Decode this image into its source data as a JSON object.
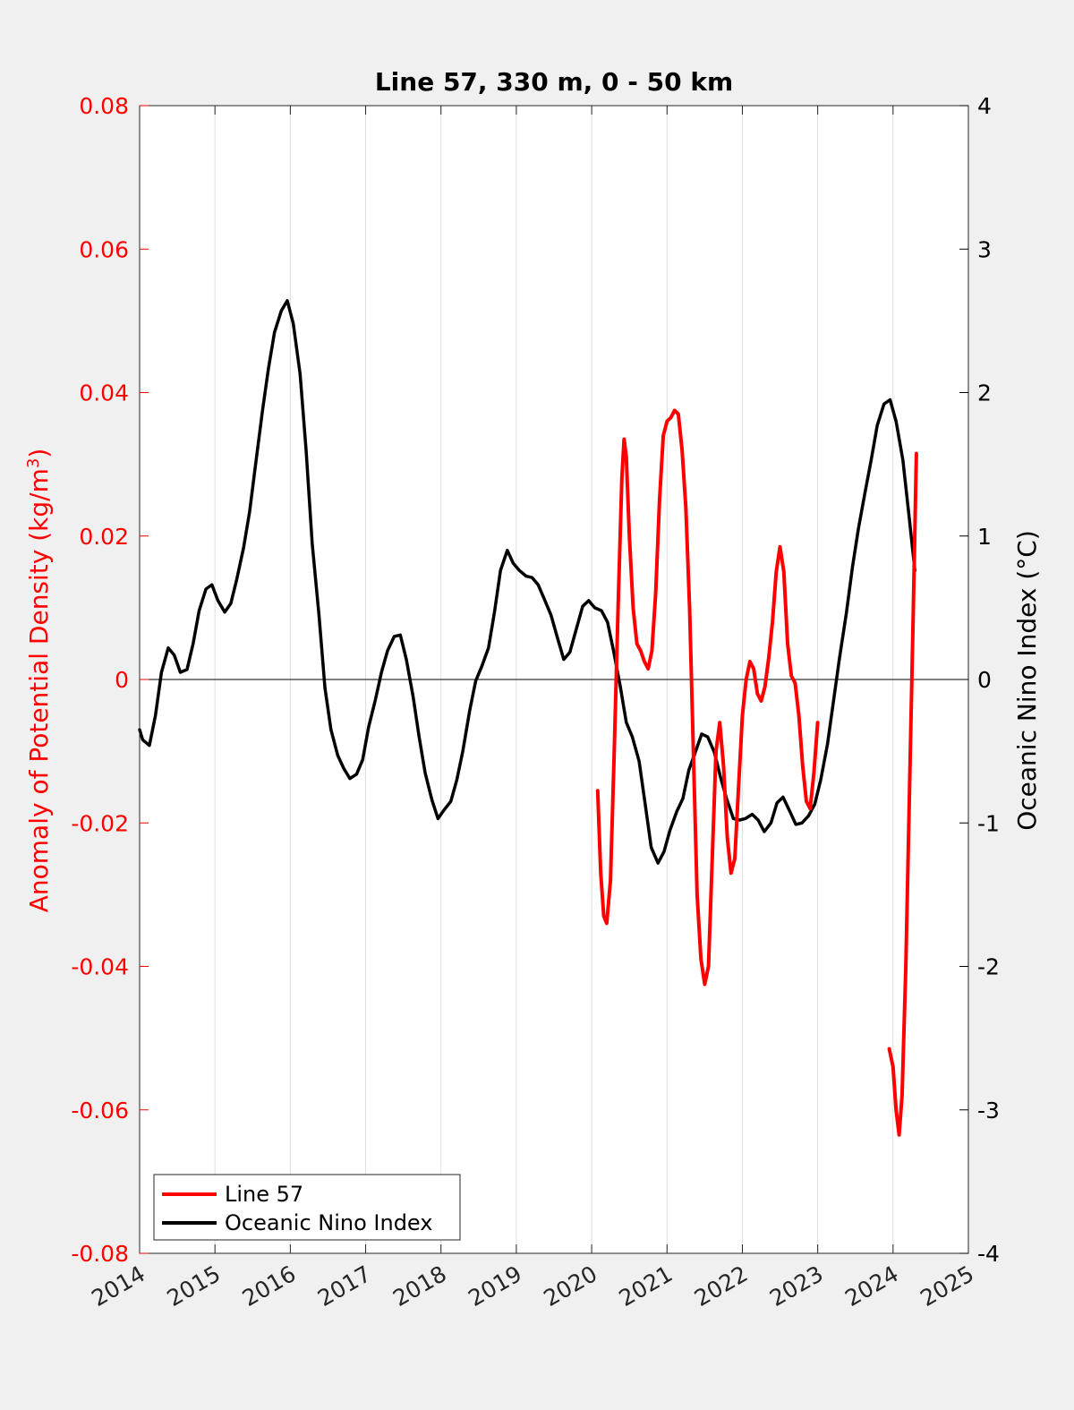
{
  "chart_data": {
    "type": "line",
    "title": "Line 57, 330 m, 0 - 50 km",
    "xlabel": "",
    "ylabel_left": "Anomaly of Potential Density (kg/m3)",
    "ylabel_left_parts": {
      "text": "Anomaly of Potential Density (kg/m",
      "sup": "3",
      "close": ")"
    },
    "ylabel_right": "Oceanic Nino Index (°C)",
    "xlim": [
      2014,
      2025
    ],
    "xticks": [
      "2014",
      "2015",
      "2016",
      "2017",
      "2018",
      "2019",
      "2020",
      "2021",
      "2022",
      "2023",
      "2024",
      "2025"
    ],
    "ylim_left": [
      -0.08,
      0.08
    ],
    "yticks_left": [
      "-0.08",
      "-0.06",
      "-0.04",
      "-0.02",
      "0",
      "0.02",
      "0.04",
      "0.06",
      "0.08"
    ],
    "ylim_right": [
      -4,
      4
    ],
    "yticks_right": [
      "-4",
      "-3",
      "-2",
      "-1",
      "0",
      "1",
      "2",
      "3",
      "4"
    ],
    "grid": "vertical",
    "zero_line": true,
    "legend": {
      "placement": "bottom-left",
      "entries": [
        "Line 57",
        "Oceanic Nino Index"
      ]
    },
    "colors": {
      "line57": "#ff0000",
      "oni": "#000000",
      "left_axis": "#ff0000",
      "right_axis": "#000000",
      "plot_bg": "#ffffff",
      "page_bg": "#f0f0f0"
    },
    "series": [
      {
        "name": "Line 57",
        "axis": "left",
        "segments": [
          [
            [
              2020.08,
              -0.0155
            ],
            [
              2020.12,
              -0.027
            ],
            [
              2020.16,
              -0.033
            ],
            [
              2020.2,
              -0.034
            ],
            [
              2020.25,
              -0.028
            ],
            [
              2020.3,
              -0.01
            ],
            [
              2020.35,
              0.01
            ],
            [
              2020.4,
              0.028
            ],
            [
              2020.43,
              0.0335
            ],
            [
              2020.46,
              0.031
            ],
            [
              2020.5,
              0.02
            ],
            [
              2020.55,
              0.01
            ],
            [
              2020.6,
              0.005
            ],
            [
              2020.65,
              0.004
            ],
            [
              2020.7,
              0.0025
            ],
            [
              2020.75,
              0.0015
            ],
            [
              2020.8,
              0.004
            ],
            [
              2020.85,
              0.012
            ],
            [
              2020.9,
              0.025
            ],
            [
              2020.95,
              0.034
            ],
            [
              2021.0,
              0.036
            ],
            [
              2021.05,
              0.0365
            ],
            [
              2021.1,
              0.0375
            ],
            [
              2021.15,
              0.037
            ],
            [
              2021.2,
              0.032
            ],
            [
              2021.25,
              0.024
            ],
            [
              2021.3,
              0.01
            ],
            [
              2021.35,
              -0.01
            ],
            [
              2021.4,
              -0.03
            ],
            [
              2021.45,
              -0.039
            ],
            [
              2021.5,
              -0.0425
            ],
            [
              2021.55,
              -0.04
            ],
            [
              2021.6,
              -0.025
            ],
            [
              2021.65,
              -0.01
            ],
            [
              2021.7,
              -0.006
            ],
            [
              2021.75,
              -0.012
            ],
            [
              2021.8,
              -0.022
            ],
            [
              2021.85,
              -0.027
            ],
            [
              2021.9,
              -0.025
            ],
            [
              2021.95,
              -0.015
            ],
            [
              2022.0,
              -0.005
            ],
            [
              2022.05,
              0.0
            ],
            [
              2022.1,
              0.0025
            ],
            [
              2022.15,
              0.0015
            ],
            [
              2022.2,
              -0.002
            ],
            [
              2022.25,
              -0.003
            ],
            [
              2022.3,
              -0.001
            ],
            [
              2022.35,
              0.003
            ],
            [
              2022.4,
              0.008
            ],
            [
              2022.45,
              0.015
            ],
            [
              2022.5,
              0.0185
            ],
            [
              2022.55,
              0.015
            ],
            [
              2022.6,
              0.005
            ],
            [
              2022.65,
              0.0005
            ],
            [
              2022.7,
              -0.0005
            ],
            [
              2022.75,
              -0.005
            ],
            [
              2022.8,
              -0.012
            ],
            [
              2022.85,
              -0.017
            ],
            [
              2022.9,
              -0.018
            ],
            [
              2022.95,
              -0.013
            ],
            [
              2023.0,
              -0.006
            ]
          ],
          [
            [
              2023.95,
              -0.0515
            ],
            [
              2024.0,
              -0.054
            ],
            [
              2024.04,
              -0.06
            ],
            [
              2024.08,
              -0.0635
            ],
            [
              2024.12,
              -0.058
            ],
            [
              2024.17,
              -0.04
            ],
            [
              2024.22,
              -0.015
            ],
            [
              2024.27,
              0.01
            ],
            [
              2024.31,
              0.0315
            ]
          ]
        ]
      },
      {
        "name": "Oceanic Nino Index",
        "axis": "right",
        "segments": [
          [
            [
              2014.0,
              -0.35
            ],
            [
              2014.04,
              -0.42
            ],
            [
              2014.13,
              -0.46
            ],
            [
              2014.21,
              -0.25
            ],
            [
              2014.29,
              0.05
            ],
            [
              2014.38,
              0.22
            ],
            [
              2014.46,
              0.17
            ],
            [
              2014.54,
              0.05
            ],
            [
              2014.63,
              0.07
            ],
            [
              2014.71,
              0.25
            ],
            [
              2014.79,
              0.48
            ],
            [
              2014.88,
              0.63
            ],
            [
              2014.96,
              0.66
            ],
            [
              2015.04,
              0.55
            ],
            [
              2015.13,
              0.47
            ],
            [
              2015.21,
              0.53
            ],
            [
              2015.29,
              0.7
            ],
            [
              2015.38,
              0.92
            ],
            [
              2015.46,
              1.17
            ],
            [
              2015.54,
              1.5
            ],
            [
              2015.63,
              1.87
            ],
            [
              2015.71,
              2.17
            ],
            [
              2015.79,
              2.42
            ],
            [
              2015.88,
              2.57
            ],
            [
              2015.96,
              2.64
            ],
            [
              2016.04,
              2.48
            ],
            [
              2016.13,
              2.13
            ],
            [
              2016.21,
              1.6
            ],
            [
              2016.29,
              0.95
            ],
            [
              2016.38,
              0.45
            ],
            [
              2016.46,
              -0.06
            ],
            [
              2016.54,
              -0.35
            ],
            [
              2016.63,
              -0.53
            ],
            [
              2016.71,
              -0.62
            ],
            [
              2016.79,
              -0.69
            ],
            [
              2016.88,
              -0.66
            ],
            [
              2016.96,
              -0.56
            ],
            [
              2017.04,
              -0.33
            ],
            [
              2017.13,
              -0.14
            ],
            [
              2017.21,
              0.05
            ],
            [
              2017.29,
              0.2
            ],
            [
              2017.38,
              0.3
            ],
            [
              2017.46,
              0.31
            ],
            [
              2017.54,
              0.14
            ],
            [
              2017.63,
              -0.12
            ],
            [
              2017.71,
              -0.4
            ],
            [
              2017.79,
              -0.65
            ],
            [
              2017.88,
              -0.84
            ],
            [
              2017.96,
              -0.97
            ],
            [
              2018.04,
              -0.91
            ],
            [
              2018.13,
              -0.85
            ],
            [
              2018.21,
              -0.7
            ],
            [
              2018.29,
              -0.5
            ],
            [
              2018.38,
              -0.22
            ],
            [
              2018.46,
              -0.01
            ],
            [
              2018.54,
              0.09
            ],
            [
              2018.63,
              0.22
            ],
            [
              2018.71,
              0.47
            ],
            [
              2018.79,
              0.76
            ],
            [
              2018.88,
              0.9
            ],
            [
              2018.96,
              0.81
            ],
            [
              2019.04,
              0.76
            ],
            [
              2019.13,
              0.72
            ],
            [
              2019.21,
              0.71
            ],
            [
              2019.29,
              0.66
            ],
            [
              2019.38,
              0.55
            ],
            [
              2019.46,
              0.45
            ],
            [
              2019.54,
              0.3
            ],
            [
              2019.63,
              0.14
            ],
            [
              2019.71,
              0.19
            ],
            [
              2019.79,
              0.34
            ],
            [
              2019.88,
              0.51
            ],
            [
              2019.96,
              0.55
            ],
            [
              2020.04,
              0.5
            ],
            [
              2020.13,
              0.48
            ],
            [
              2020.21,
              0.4
            ],
            [
              2020.29,
              0.2
            ],
            [
              2020.38,
              -0.05
            ],
            [
              2020.46,
              -0.3
            ],
            [
              2020.54,
              -0.4
            ],
            [
              2020.63,
              -0.57
            ],
            [
              2020.71,
              -0.87
            ],
            [
              2020.79,
              -1.17
            ],
            [
              2020.88,
              -1.28
            ],
            [
              2020.96,
              -1.2
            ],
            [
              2021.04,
              -1.05
            ],
            [
              2021.13,
              -0.92
            ],
            [
              2021.21,
              -0.83
            ],
            [
              2021.29,
              -0.63
            ],
            [
              2021.38,
              -0.5
            ],
            [
              2021.46,
              -0.38
            ],
            [
              2021.54,
              -0.4
            ],
            [
              2021.63,
              -0.51
            ],
            [
              2021.71,
              -0.68
            ],
            [
              2021.79,
              -0.83
            ],
            [
              2021.88,
              -0.97
            ],
            [
              2021.96,
              -0.98
            ],
            [
              2022.04,
              -0.97
            ],
            [
              2022.13,
              -0.94
            ],
            [
              2022.21,
              -0.98
            ],
            [
              2022.29,
              -1.06
            ],
            [
              2022.38,
              -1.0
            ],
            [
              2022.46,
              -0.86
            ],
            [
              2022.54,
              -0.82
            ],
            [
              2022.63,
              -0.92
            ],
            [
              2022.71,
              -1.01
            ],
            [
              2022.79,
              -1.0
            ],
            [
              2022.88,
              -0.95
            ],
            [
              2022.96,
              -0.87
            ],
            [
              2023.04,
              -0.7
            ],
            [
              2023.13,
              -0.45
            ],
            [
              2023.21,
              -0.15
            ],
            [
              2023.29,
              0.15
            ],
            [
              2023.38,
              0.46
            ],
            [
              2023.46,
              0.78
            ],
            [
              2023.54,
              1.05
            ],
            [
              2023.63,
              1.31
            ],
            [
              2023.71,
              1.53
            ],
            [
              2023.79,
              1.77
            ],
            [
              2023.88,
              1.92
            ],
            [
              2023.96,
              1.95
            ],
            [
              2024.04,
              1.8
            ],
            [
              2024.13,
              1.53
            ],
            [
              2024.21,
              1.15
            ],
            [
              2024.29,
              0.76
            ]
          ]
        ]
      }
    ]
  }
}
